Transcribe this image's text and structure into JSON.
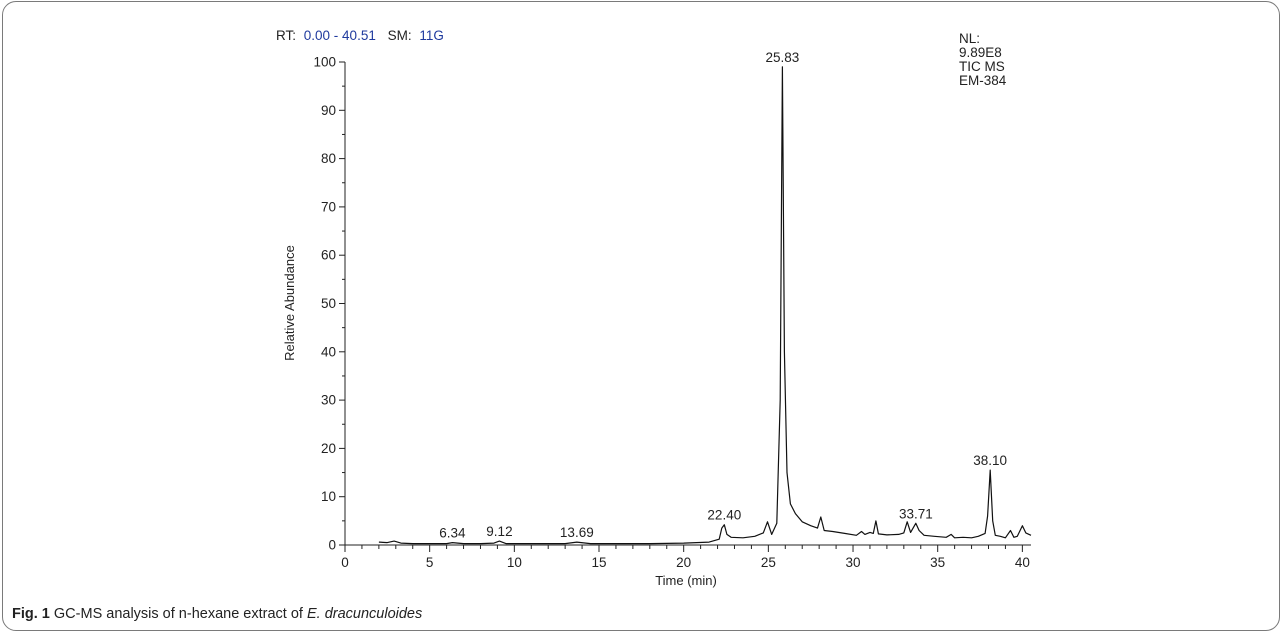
{
  "header": {
    "rt_label": "RT:",
    "rt_value": "0.00 - 40.51",
    "sm_label": "SM:",
    "sm_value": "11G",
    "value_color": "#1f3a9e"
  },
  "info_box": [
    "NL:",
    "9.89E8",
    "TIC MS",
    "EM-384"
  ],
  "caption": {
    "label": "Fig. 1",
    "text": "GC-MS analysis of n-hexane extract of",
    "species": "E. dracunculoides"
  },
  "chart_data": {
    "type": "line",
    "title": "",
    "xlabel": "Time (min)",
    "ylabel": "Relative Abundance",
    "xlim": [
      0,
      40.51
    ],
    "ylim": [
      0,
      100
    ],
    "xticks": [
      0,
      5,
      10,
      15,
      20,
      25,
      30,
      35,
      40
    ],
    "yticks": [
      0,
      10,
      20,
      30,
      40,
      50,
      60,
      70,
      80,
      90,
      100
    ],
    "grid": false,
    "series": [
      {
        "x": [
          2.0,
          2.5,
          2.9,
          3.3,
          4.0,
          5.0,
          6.0,
          6.34,
          7.0,
          8.0,
          8.8,
          9.12,
          9.5,
          10.5,
          12.0,
          13.0,
          13.69,
          14.5,
          16.0,
          18.0,
          20.0,
          21.5,
          22.1,
          22.25,
          22.4,
          22.55,
          22.8,
          23.5,
          24.2,
          24.7,
          24.95,
          25.2,
          25.5,
          25.7,
          25.83,
          25.95,
          26.1,
          26.3,
          26.6,
          27.0,
          27.5,
          27.9,
          28.1,
          28.3,
          28.8,
          29.5,
          30.2,
          30.5,
          30.7,
          31.0,
          31.2,
          31.35,
          31.5,
          32.0,
          32.7,
          33.0,
          33.2,
          33.4,
          33.71,
          33.9,
          34.2,
          34.8,
          35.5,
          35.8,
          36.0,
          36.5,
          37.0,
          37.4,
          37.8,
          37.95,
          38.1,
          38.25,
          38.4,
          38.7,
          39.0,
          39.3,
          39.5,
          39.7,
          40.0,
          40.2,
          40.51
        ],
        "y": [
          0.6,
          0.5,
          0.8,
          0.4,
          0.3,
          0.3,
          0.3,
          0.5,
          0.3,
          0.3,
          0.4,
          0.8,
          0.3,
          0.3,
          0.3,
          0.3,
          0.6,
          0.3,
          0.3,
          0.3,
          0.4,
          0.6,
          1.2,
          3.5,
          4.2,
          2.2,
          1.6,
          1.5,
          1.8,
          2.5,
          4.8,
          2.2,
          4.5,
          30.0,
          99.0,
          40.0,
          15.0,
          8.5,
          6.5,
          4.8,
          4.0,
          3.5,
          5.8,
          3.0,
          2.8,
          2.4,
          2.0,
          2.8,
          2.2,
          2.6,
          2.4,
          5.0,
          2.3,
          2.1,
          2.2,
          2.5,
          4.8,
          2.6,
          4.5,
          3.0,
          2.0,
          1.8,
          1.6,
          2.2,
          1.5,
          1.6,
          1.5,
          1.8,
          2.4,
          6.0,
          15.5,
          5.0,
          2.0,
          1.8,
          1.5,
          3.0,
          1.6,
          1.8,
          4.0,
          2.5,
          2.0
        ]
      }
    ],
    "peak_labels": [
      {
        "x": 6.34,
        "y": 0.5,
        "text": "6.34"
      },
      {
        "x": 9.12,
        "y": 0.8,
        "text": "9.12"
      },
      {
        "x": 13.69,
        "y": 0.6,
        "text": "13.69"
      },
      {
        "x": 22.4,
        "y": 4.2,
        "text": "22.40"
      },
      {
        "x": 25.83,
        "y": 99.0,
        "text": "25.83"
      },
      {
        "x": 33.71,
        "y": 4.5,
        "text": "33.71"
      },
      {
        "x": 38.1,
        "y": 15.5,
        "text": "38.10"
      }
    ],
    "line_color": "#111111"
  }
}
